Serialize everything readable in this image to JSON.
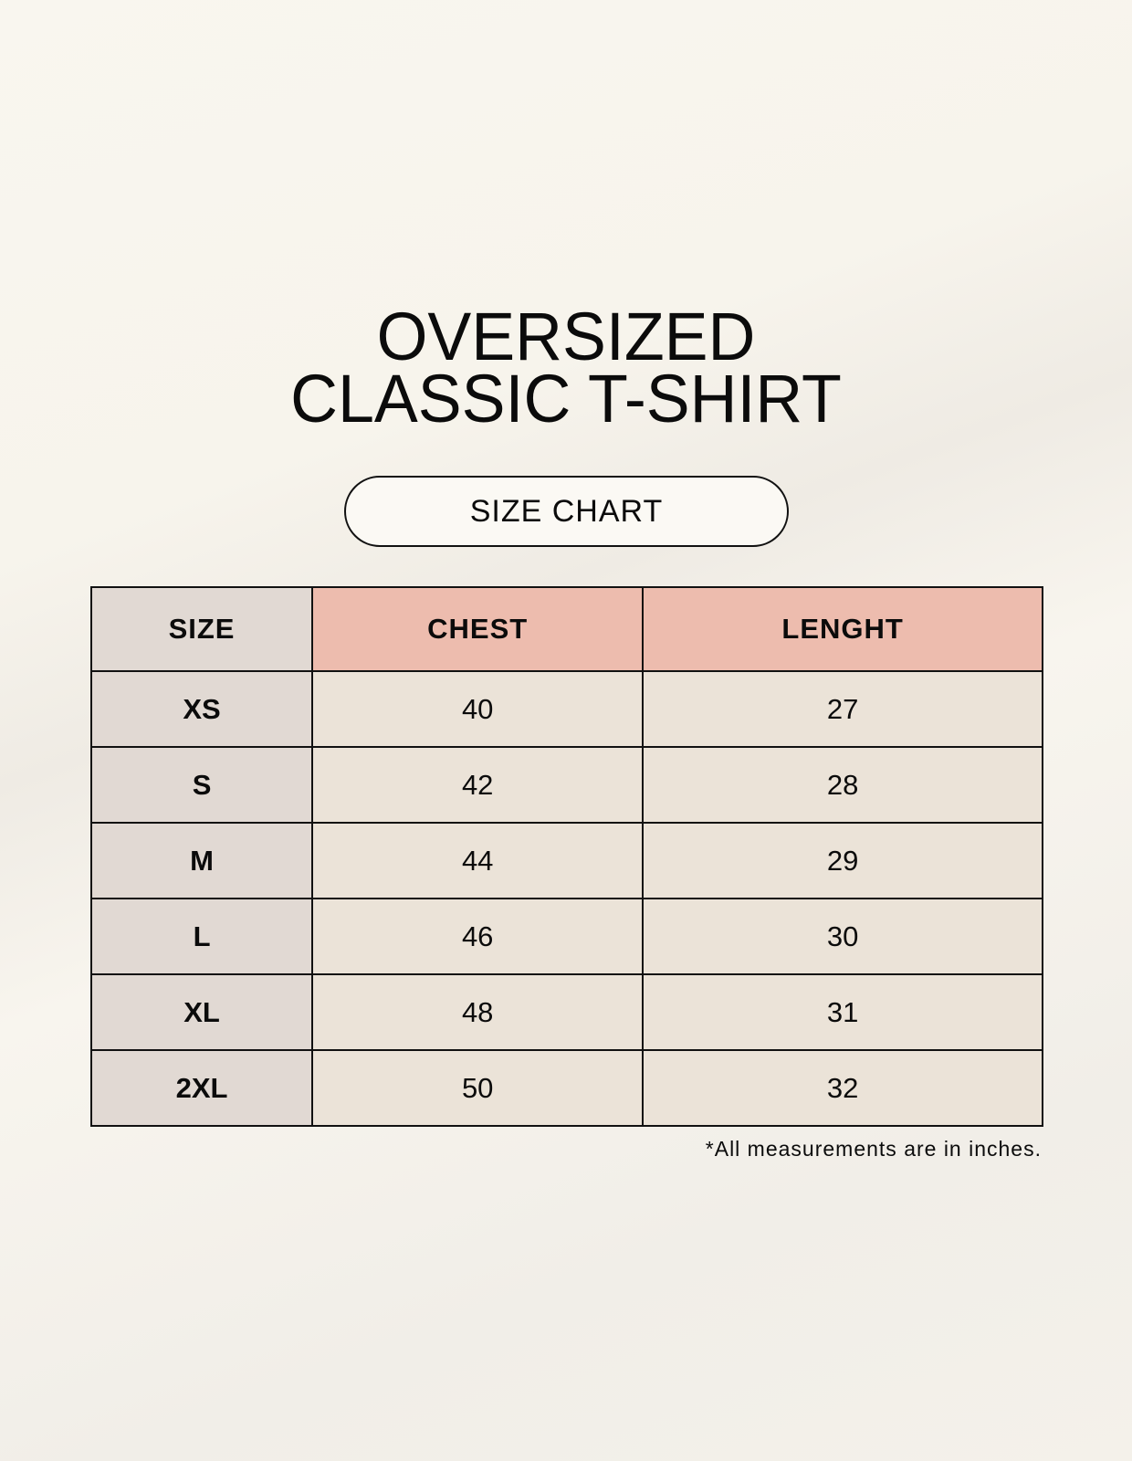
{
  "title": {
    "line1": "OVERSIZED",
    "line2": "CLASSIC T-SHIRT"
  },
  "badge": "SIZE CHART",
  "table": {
    "headers": [
      "SIZE",
      "CHEST",
      "LENGHT"
    ],
    "rows": [
      [
        "XS",
        "40",
        "27"
      ],
      [
        "S",
        "42",
        "28"
      ],
      [
        "M",
        "44",
        "29"
      ],
      [
        "L",
        "46",
        "30"
      ],
      [
        "XL",
        "48",
        "31"
      ],
      [
        "2XL",
        "50",
        "32"
      ]
    ]
  },
  "footnote": "*All measurements are in inches.",
  "colors": {
    "size_column": "#e1d9d3",
    "header_accent": "#edbcae",
    "cell": "#ebe3d8"
  }
}
